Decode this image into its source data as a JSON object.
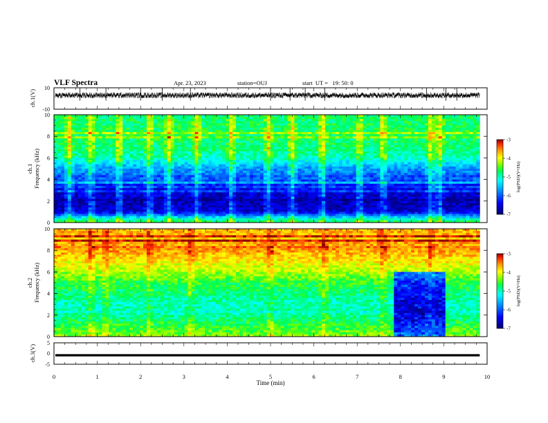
{
  "header": {
    "title": "VLF Spectra",
    "date": "Apr. 23, 2023",
    "station": "station=OUJ",
    "start": "start  UT =   19: 50: 0"
  },
  "chart_data": [
    {
      "type": "line",
      "name": "ch1-waveform",
      "ylabel": "ch.1(V)",
      "ylim": [
        -10,
        10
      ],
      "yticks": [
        "10",
        "-10"
      ],
      "xlim": [
        0,
        10
      ],
      "baseline": 3,
      "spikes": [
        0.6,
        1.2,
        2.0,
        2.5,
        3.15,
        5.0,
        5.45,
        5.8,
        6.25,
        8.6,
        9.05,
        9.3
      ]
    },
    {
      "type": "heatmap",
      "name": "ch1-spectrogram",
      "ylabel_line1": "ch.1",
      "ylabel_line2": "Frequency (kHz)",
      "ylim": [
        0,
        10
      ],
      "yticks": [
        "0",
        "2",
        "4",
        "6",
        "8",
        "10"
      ],
      "xlim": [
        0,
        10
      ],
      "data_end_min": 9.83,
      "colorbar": {
        "range": [
          -7,
          -3
        ],
        "ticks": [
          "-3",
          "-4",
          "-5",
          "-6",
          "-7"
        ],
        "label": "log(PSD)(V²/Hz)"
      },
      "profile": [
        {
          "f": 0.0,
          "v": -4.6
        },
        {
          "f": 0.4,
          "v": -5.2
        },
        {
          "f": 1.0,
          "v": -6.6
        },
        {
          "f": 2.0,
          "v": -6.7
        },
        {
          "f": 3.0,
          "v": -6.5
        },
        {
          "f": 4.0,
          "v": -6.0
        },
        {
          "f": 5.0,
          "v": -5.7
        },
        {
          "f": 6.0,
          "v": -5.0
        },
        {
          "f": 7.0,
          "v": -4.8
        },
        {
          "f": 8.5,
          "v": -4.7
        },
        {
          "f": 10.0,
          "v": -4.8
        }
      ],
      "bursts": [
        0.35,
        0.85,
        1.5,
        2.2,
        2.65,
        3.3,
        4.1,
        4.95,
        5.5,
        6.2,
        7.05,
        7.6,
        8.7,
        8.9
      ]
    },
    {
      "type": "heatmap",
      "name": "ch2-spectrogram",
      "ylabel_line1": "ch.2",
      "ylabel_line2": "Frequency (kHz)",
      "ylim": [
        0,
        10
      ],
      "yticks": [
        "0",
        "2",
        "4",
        "6",
        "8",
        "10"
      ],
      "xlim": [
        0,
        10
      ],
      "data_end_min": 9.83,
      "colorbar": {
        "range": [
          -7,
          -3
        ],
        "ticks": [
          "-3",
          "-4",
          "-5",
          "-6",
          "-7"
        ],
        "label": "log(PSD)(V²/Hz)"
      },
      "profile": [
        {
          "f": 0.0,
          "v": -4.3
        },
        {
          "f": 1.0,
          "v": -4.6
        },
        {
          "f": 2.0,
          "v": -4.9
        },
        {
          "f": 3.0,
          "v": -5.0
        },
        {
          "f": 4.0,
          "v": -4.8
        },
        {
          "f": 5.0,
          "v": -4.6
        },
        {
          "f": 6.0,
          "v": -4.2
        },
        {
          "f": 7.0,
          "v": -3.9
        },
        {
          "f": 8.0,
          "v": -3.6
        },
        {
          "f": 9.0,
          "v": -3.6
        },
        {
          "f": 10.0,
          "v": -3.7
        }
      ],
      "quiet_window": [
        7.85,
        9.05
      ],
      "bursts": [
        0.85,
        1.2,
        2.2,
        3.15,
        5.0,
        6.25,
        7.6,
        8.7
      ]
    },
    {
      "type": "line",
      "name": "ch3-waveform",
      "ylabel": "ch.3(V)",
      "ylim": [
        -5,
        5
      ],
      "yticks": [
        "5",
        "0",
        "-5"
      ],
      "xlim": [
        0,
        10
      ],
      "baseline": -0.8
    }
  ],
  "xaxis": {
    "label": "Time (min)",
    "ticks": [
      "0",
      "1",
      "2",
      "3",
      "4",
      "5",
      "6",
      "7",
      "8",
      "9",
      "10"
    ]
  }
}
